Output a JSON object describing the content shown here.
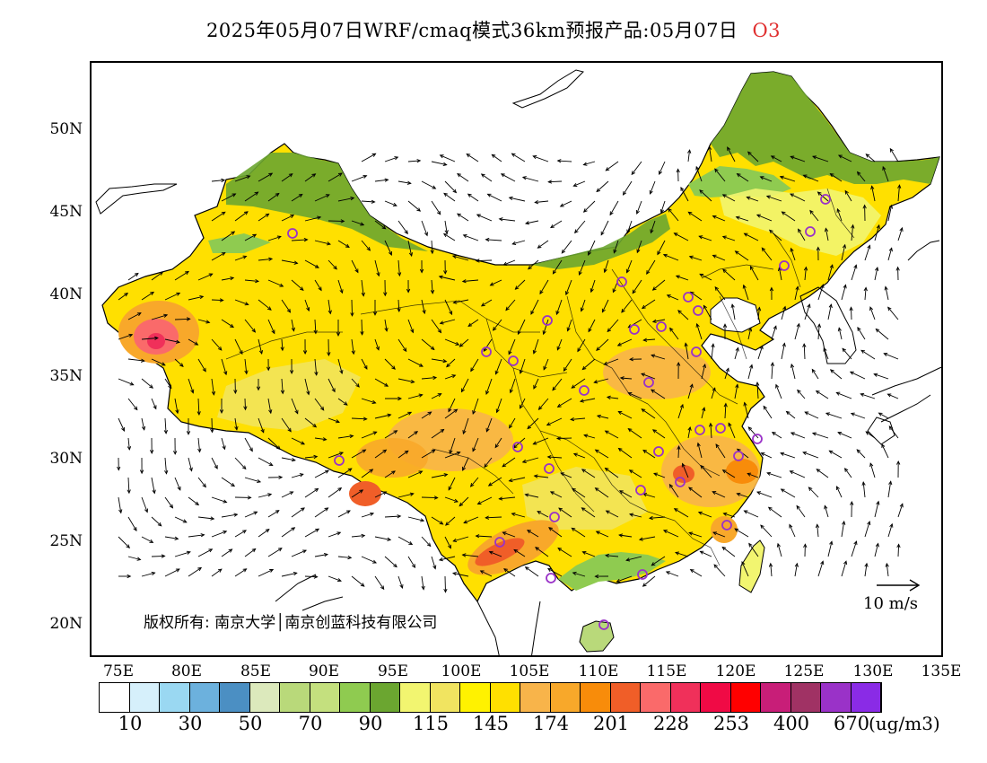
{
  "title": {
    "text": "2025年05月07日WRF/cmaq模式36km预报产品:05月07日",
    "species": "O3"
  },
  "map": {
    "lat_labels": [
      "50N",
      "45N",
      "40N",
      "35N",
      "30N",
      "25N",
      "20N"
    ],
    "lon_labels": [
      "75E",
      "80E",
      "85E",
      "90E",
      "95E",
      "100E",
      "105E",
      "110E",
      "115E",
      "120E",
      "125E",
      "130E",
      "135E"
    ],
    "copyright": "版权所有: 南京大学│南京创蓝科技有限公司",
    "wind_reference": "10 m/s"
  },
  "colorbar": {
    "colors": [
      "#ffffff",
      "#d6f0fb",
      "#9ad8f2",
      "#6cb1dd",
      "#4b8fc3",
      "#dce9bc",
      "#b9d97a",
      "#c4e07e",
      "#8fcb50",
      "#6ba630",
      "#f2f570",
      "#f1e460",
      "#fff200",
      "#ffe000",
      "#f8b44a",
      "#f8a82a",
      "#f88c0a",
      "#f05e28",
      "#fa6a6a",
      "#f0305a",
      "#f00a45",
      "#ff0000",
      "#c81e78",
      "#a03264",
      "#9a32c8",
      "#8a2be6"
    ],
    "labels": [
      "10",
      "30",
      "50",
      "70",
      "90",
      "115",
      "145",
      "174",
      "201",
      "228",
      "253",
      "400",
      "670"
    ],
    "unit": "(ug/m3)"
  }
}
